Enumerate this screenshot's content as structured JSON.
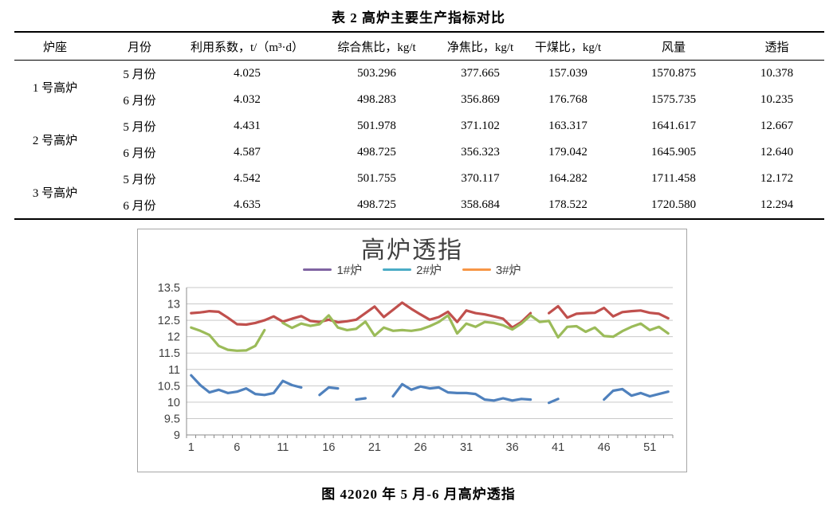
{
  "document": {
    "table_title": "表 2 高炉主要生产指标对比",
    "figure_caption": "图 42020 年 5 月-6 月高炉透指"
  },
  "table": {
    "columns": [
      "炉座",
      "月份",
      "利用系数，t/（m³·d）",
      "综合焦比，kg/t",
      "净焦比，kg/t",
      "干煤比，kg/t",
      "风量",
      "透指"
    ],
    "groups": [
      {
        "furnace": "1 号高炉",
        "rows": [
          {
            "month": "5 月份",
            "values": [
              "4.025",
              "503.296",
              "377.665",
              "157.039",
              "1570.875",
              "10.378"
            ]
          },
          {
            "month": "6 月份",
            "values": [
              "4.032",
              "498.283",
              "356.869",
              "176.768",
              "1575.735",
              "10.235"
            ]
          }
        ]
      },
      {
        "furnace": "2 号高炉",
        "rows": [
          {
            "month": "5 月份",
            "values": [
              "4.431",
              "501.978",
              "371.102",
              "163.317",
              "1641.617",
              "12.667"
            ]
          },
          {
            "month": "6 月份",
            "values": [
              "4.587",
              "498.725",
              "356.323",
              "179.042",
              "1645.905",
              "12.640"
            ]
          }
        ]
      },
      {
        "furnace": "3 号高炉",
        "rows": [
          {
            "month": "5 月份",
            "values": [
              "4.542",
              "501.755",
              "370.117",
              "164.282",
              "1711.458",
              "12.172"
            ]
          },
          {
            "month": "6 月份",
            "values": [
              "4.635",
              "498.725",
              "358.684",
              "178.522",
              "1720.580",
              "12.294"
            ]
          }
        ]
      }
    ]
  },
  "chart_data": {
    "type": "line",
    "title": "高炉透指",
    "xlabel": "",
    "ylabel": "",
    "x_count": 53,
    "x_tick_labels": [
      "1",
      "6",
      "11",
      "16",
      "21",
      "26",
      "31",
      "36",
      "41",
      "46",
      "51"
    ],
    "x_tick_start": 1,
    "x_tick_step": 5,
    "ylim": [
      9,
      13.5
    ],
    "ytick_step": 0.5,
    "grid": true,
    "legend_position": "top",
    "colors": {
      "grid": "#c9c9c9",
      "axis": "#8c8c8c",
      "tick_label": "#3f3f3f",
      "chart_border": "#a6a6a6"
    },
    "series": [
      {
        "name": "1#炉",
        "swatch_color": "#8064A2",
        "line_color": "#4F81BD",
        "values": [
          10.82,
          10.52,
          10.3,
          10.38,
          10.28,
          10.32,
          10.42,
          10.25,
          10.22,
          10.28,
          10.65,
          10.52,
          10.45,
          null,
          10.22,
          10.45,
          10.42,
          null,
          10.08,
          10.12,
          null,
          null,
          10.18,
          10.55,
          10.38,
          10.48,
          10.42,
          10.45,
          10.3,
          10.28,
          10.28,
          10.25,
          10.08,
          10.05,
          10.12,
          10.05,
          10.1,
          10.08,
          null,
          9.98,
          10.1,
          null,
          null,
          null,
          null,
          10.08,
          10.35,
          10.4,
          10.2,
          10.28,
          10.18,
          10.25,
          10.32
        ]
      },
      {
        "name": "2#炉",
        "swatch_color": "#4BACC6",
        "line_color": "#C0504D",
        "values": [
          12.72,
          12.74,
          12.78,
          12.76,
          12.58,
          12.38,
          12.37,
          12.42,
          12.5,
          12.62,
          12.46,
          12.55,
          12.63,
          12.48,
          12.45,
          12.52,
          12.44,
          12.47,
          12.52,
          12.72,
          12.92,
          12.6,
          12.82,
          13.04,
          12.85,
          12.68,
          12.52,
          12.6,
          12.76,
          12.45,
          12.8,
          12.72,
          12.68,
          12.62,
          12.55,
          12.28,
          12.45,
          12.72,
          null,
          12.72,
          12.93,
          12.58,
          12.7,
          12.72,
          12.73,
          12.88,
          12.62,
          12.75,
          12.78,
          12.8,
          12.73,
          12.7,
          12.56
        ]
      },
      {
        "name": "3#炉",
        "swatch_color": "#F79646",
        "line_color": "#9BBB59",
        "values": [
          12.28,
          12.18,
          12.05,
          11.72,
          11.6,
          11.57,
          11.58,
          11.72,
          12.2,
          null,
          12.42,
          12.27,
          12.4,
          12.33,
          12.38,
          12.65,
          12.28,
          12.2,
          12.24,
          12.46,
          12.03,
          12.28,
          12.18,
          12.2,
          12.18,
          12.22,
          12.32,
          12.45,
          12.65,
          12.1,
          12.4,
          12.3,
          12.45,
          12.42,
          12.35,
          12.22,
          12.4,
          12.65,
          12.45,
          12.48,
          11.98,
          12.3,
          12.32,
          12.15,
          12.28,
          12.02,
          12.0,
          12.17,
          12.3,
          12.4,
          12.2,
          12.3,
          12.1
        ]
      }
    ]
  }
}
